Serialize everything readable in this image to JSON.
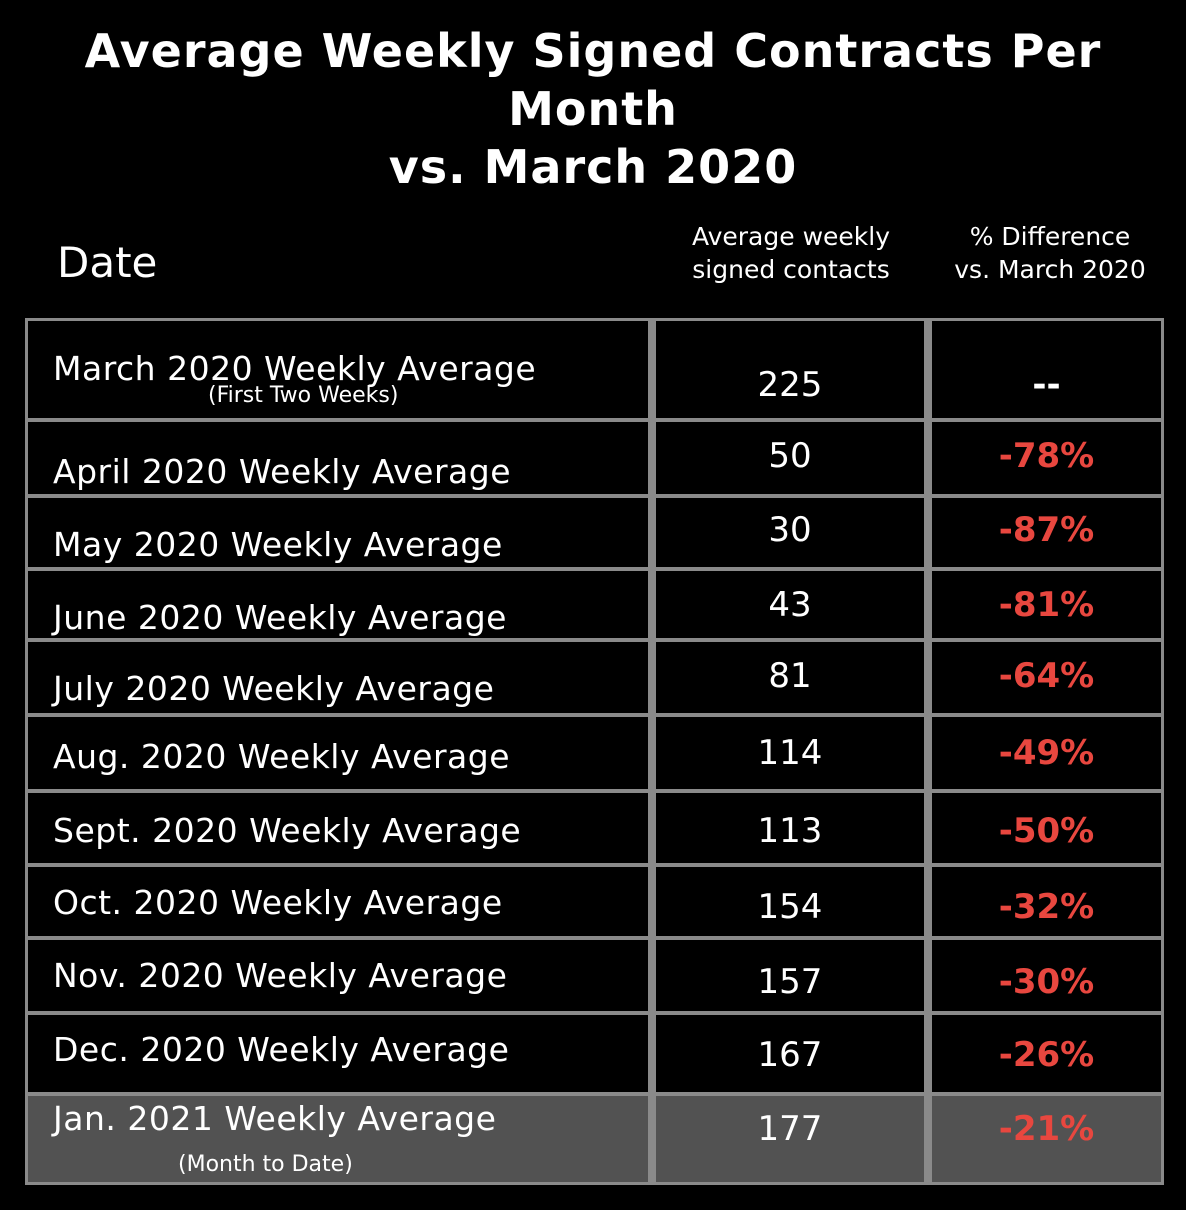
{
  "title_line1": "Average Weekly Signed Contracts Per Month",
  "title_line2": "vs. March 2020",
  "header": {
    "date": "Date",
    "col2_line1": "Average weekly",
    "col2_line2": "signed contacts",
    "col3_line1": "% Difference",
    "col3_line2": "vs. March 2020"
  },
  "colors": {
    "background": "#000000",
    "border": "#8a8a8a",
    "highlight_row": "#525252",
    "negative": "#e8473f"
  },
  "chart_data": {
    "type": "table",
    "title": "Average Weekly Signed Contracts Per Month vs. March 2020",
    "columns": [
      "Date",
      "Average weekly signed contacts",
      "% Difference vs. March 2020"
    ],
    "rows": [
      {
        "label": "March 2020 Weekly Average",
        "note": "(First Two Weeks)",
        "value": "225",
        "diff": "--"
      },
      {
        "label": "April 2020 Weekly Average",
        "value": "50",
        "diff": "-78%"
      },
      {
        "label": "May 2020 Weekly Average",
        "value": "30",
        "diff": "-87%"
      },
      {
        "label": "June 2020 Weekly Average",
        "value": "43",
        "diff": "-81%"
      },
      {
        "label": "July 2020 Weekly Average",
        "value": "81",
        "diff": "-64%"
      },
      {
        "label": "Aug. 2020 Weekly Average",
        "value": "114",
        "diff": "-49%"
      },
      {
        "label": "Sept. 2020 Weekly Average",
        "value": "113",
        "diff": "-50%"
      },
      {
        "label": "Oct. 2020 Weekly Average",
        "value": "154",
        "diff": "-32%"
      },
      {
        "label": "Nov. 2020 Weekly Average",
        "value": "157",
        "diff": "-30%"
      },
      {
        "label": "Dec. 2020 Weekly Average",
        "value": "167",
        "diff": "-26%"
      },
      {
        "label": "Jan. 2021 Weekly Average",
        "note": "(Month to Date)",
        "value": "177",
        "diff": "-21%"
      }
    ]
  }
}
